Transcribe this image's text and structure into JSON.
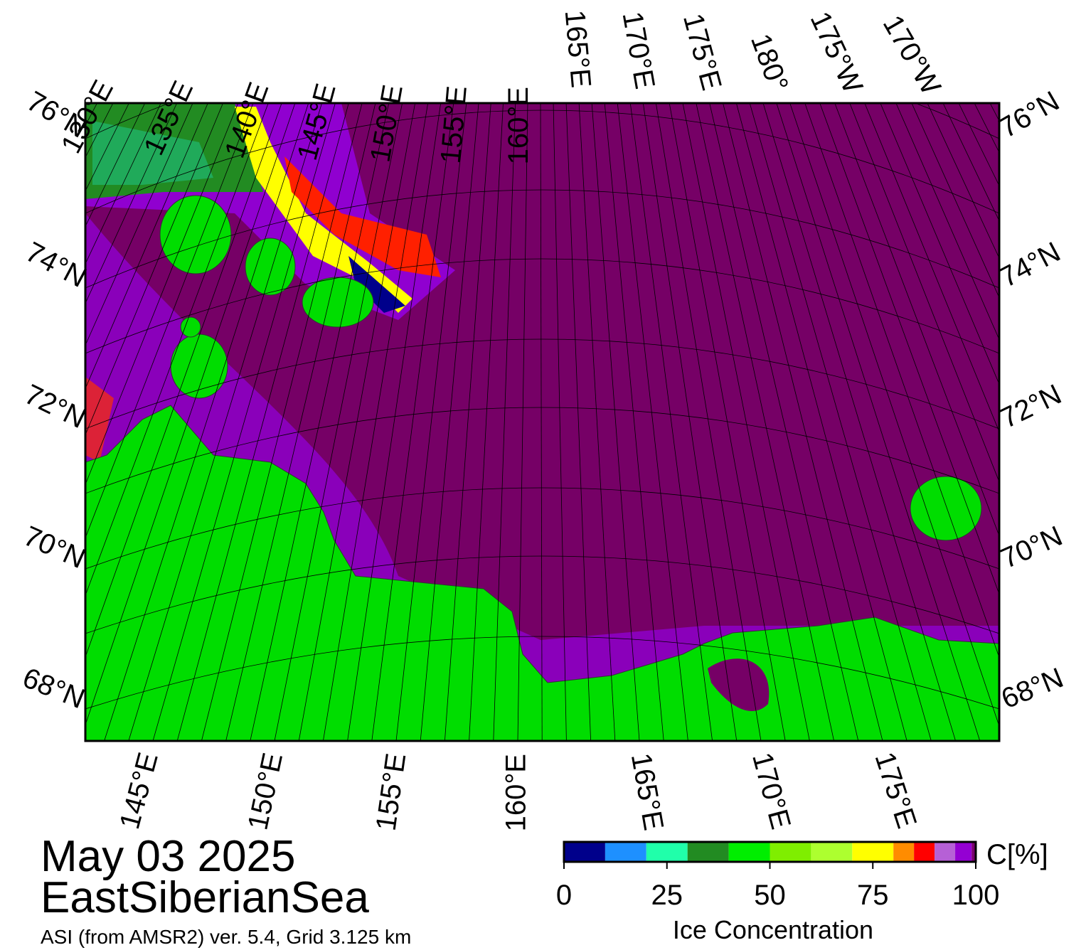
{
  "map": {
    "top_labels": [
      "130°E",
      "135°E",
      "140°E",
      "145°E",
      "150°E",
      "155°E",
      "160°E",
      "165°E",
      "170°E",
      "175°E",
      "180°",
      "175°W",
      "170°W"
    ],
    "bottom_labels": [
      "145°E",
      "150°E",
      "155°E",
      "160°E",
      "165°E",
      "170°E",
      "175°E"
    ],
    "left_labels": [
      "76°N",
      "74°N",
      "72°N",
      "70°N",
      "68°N"
    ],
    "right_labels": [
      "76°N",
      "74°N",
      "72°N",
      "70°N",
      "68°N"
    ]
  },
  "date": "May 03 2025",
  "region": "EastSiberianSea",
  "source": "ASI (from AMSR2) ver. 5.4,  Grid 3.125 km",
  "colorbar": {
    "title": "Ice Concentration",
    "unit": "C[%]",
    "range": [
      0,
      100
    ],
    "ticks": [
      0,
      25,
      50,
      75,
      100
    ],
    "bins": [
      0,
      10,
      20,
      30,
      40,
      50,
      60,
      70,
      80,
      85,
      90,
      95,
      99,
      100
    ],
    "colors": [
      "#00008b",
      "#1e90ff",
      "#20ffaa",
      "#228b22",
      "#00ee00",
      "#7fee00",
      "#adff2f",
      "#ffff00",
      "#ff8c00",
      "#ff0000",
      "#b660d6",
      "#9400d3",
      "#7a0070"
    ]
  }
}
